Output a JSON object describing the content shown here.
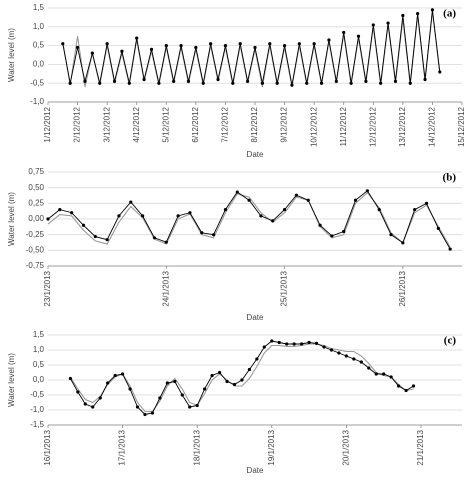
{
  "chart_data": [
    {
      "type": "line",
      "label": "(a)",
      "xlabel": "Date",
      "ylabel": "Water level (m)",
      "grid": true,
      "xlim": [
        1,
        15
      ],
      "xticks": [
        {
          "value": 1,
          "label": "1/12/2012"
        },
        {
          "value": 2,
          "label": "2/12/2012"
        },
        {
          "value": 3,
          "label": "3/12/2012"
        },
        {
          "value": 4,
          "label": "4/12/2012"
        },
        {
          "value": 5,
          "label": "5/12/2012"
        },
        {
          "value": 6,
          "label": "6/12/2012"
        },
        {
          "value": 7,
          "label": "7/12/2012"
        },
        {
          "value": 8,
          "label": "8/12/2012"
        },
        {
          "value": 9,
          "label": "9/12/2012"
        },
        {
          "value": 10,
          "label": "10/12/2012"
        },
        {
          "value": 11,
          "label": "11/12/2012"
        },
        {
          "value": 12,
          "label": "12/12/2012"
        },
        {
          "value": 13,
          "label": "13/12/2012"
        },
        {
          "value": 14,
          "label": "14/12/2012"
        },
        {
          "value": 15,
          "label": "15/12/2012"
        }
      ],
      "ylim": [
        -1,
        1.5
      ],
      "yticks": [
        {
          "value": -1,
          "label": "-1,0"
        },
        {
          "value": -0.5,
          "label": "-0,5"
        },
        {
          "value": 0,
          "label": "0,0"
        },
        {
          "value": 0.5,
          "label": "0,5"
        },
        {
          "value": 1,
          "label": "1,0"
        },
        {
          "value": 1.5,
          "label": "1,5"
        }
      ],
      "x": [
        1.5,
        1.75,
        2,
        2.25,
        2.5,
        2.75,
        3,
        3.25,
        3.5,
        3.75,
        4,
        4.25,
        4.5,
        4.75,
        5,
        5.25,
        5.5,
        5.75,
        6,
        6.25,
        6.5,
        6.75,
        7,
        7.25,
        7.5,
        7.75,
        8,
        8.25,
        8.5,
        8.75,
        9,
        9.25,
        9.5,
        9.75,
        10,
        10.25,
        10.5,
        10.75,
        11,
        11.25,
        11.5,
        11.75,
        12,
        12.25,
        12.5,
        12.75,
        13,
        13.25,
        13.5,
        13.75,
        14,
        14.25
      ],
      "series": [
        {
          "color": "#999999",
          "marker": false,
          "values": [
            0.6,
            -0.55,
            0.75,
            -0.6,
            0.3,
            -0.55,
            0.5,
            -0.5,
            0.3,
            -0.55,
            0.65,
            -0.45,
            0.35,
            -0.55,
            0.45,
            -0.5,
            0.45,
            -0.5,
            0.4,
            -0.55,
            0.5,
            -0.45,
            0.45,
            -0.55,
            0.5,
            -0.5,
            0.4,
            -0.6,
            0.5,
            -0.55,
            0.45,
            -0.6,
            0.5,
            -0.55,
            0.5,
            -0.55,
            0.6,
            -0.5,
            0.8,
            -0.55,
            0.7,
            -0.5,
            1.0,
            -0.55,
            1.05,
            -0.5,
            1.2,
            -0.55,
            1.3,
            -0.45,
            1.4,
            -0.25
          ]
        },
        {
          "color": "#000000",
          "marker": true,
          "values": [
            0.55,
            -0.5,
            0.45,
            -0.45,
            0.3,
            -0.5,
            0.55,
            -0.45,
            0.35,
            -0.5,
            0.7,
            -0.4,
            0.4,
            -0.5,
            0.5,
            -0.45,
            0.5,
            -0.45,
            0.45,
            -0.5,
            0.55,
            -0.4,
            0.5,
            -0.5,
            0.55,
            -0.45,
            0.45,
            -0.5,
            0.55,
            -0.5,
            0.5,
            -0.55,
            0.55,
            -0.5,
            0.55,
            -0.5,
            0.65,
            -0.45,
            0.85,
            -0.5,
            0.75,
            -0.45,
            1.05,
            -0.5,
            1.1,
            -0.45,
            1.3,
            -0.5,
            1.35,
            -0.4,
            1.45,
            -0.2
          ]
        }
      ]
    },
    {
      "type": "line",
      "label": "(b)",
      "xlabel": "Date",
      "ylabel": "Water level (m)",
      "grid": true,
      "xlim": [
        23,
        26.5
      ],
      "xticks": [
        {
          "value": 23,
          "label": "23/1/2013"
        },
        {
          "value": 24,
          "label": "24/1/2013"
        },
        {
          "value": 25,
          "label": "25/1/2013"
        },
        {
          "value": 26,
          "label": "26/1/2013"
        }
      ],
      "ylim": [
        -0.75,
        0.75
      ],
      "yticks": [
        {
          "value": -0.75,
          "label": "-0,75"
        },
        {
          "value": -0.5,
          "label": "-0,50"
        },
        {
          "value": -0.25,
          "label": "-0,25"
        },
        {
          "value": 0,
          "label": "0,00"
        },
        {
          "value": 0.25,
          "label": "0,25"
        },
        {
          "value": 0.5,
          "label": "0,50"
        },
        {
          "value": 0.75,
          "label": "0,75"
        }
      ],
      "x": [
        23,
        23.1,
        23.2,
        23.3,
        23.4,
        23.5,
        23.6,
        23.7,
        23.8,
        23.9,
        24,
        24.1,
        24.2,
        24.3,
        24.4,
        24.5,
        24.6,
        24.7,
        24.8,
        24.9,
        25,
        25.1,
        25.2,
        25.3,
        25.4,
        25.5,
        25.6,
        25.7,
        25.8,
        25.9,
        26,
        26.1,
        26.2,
        26.3,
        26.4
      ],
      "series": [
        {
          "color": "#999999",
          "marker": false,
          "values": [
            -0.08,
            0.07,
            0.05,
            -0.18,
            -0.35,
            -0.4,
            -0.05,
            0.2,
            0.02,
            -0.32,
            -0.4,
            0.0,
            0.08,
            -0.25,
            -0.3,
            0.1,
            0.4,
            0.35,
            0.1,
            -0.05,
            0.1,
            0.35,
            0.3,
            -0.12,
            -0.3,
            -0.25,
            0.25,
            0.42,
            0.18,
            -0.22,
            -0.38,
            0.1,
            0.22,
            -0.12,
            -0.45
          ]
        },
        {
          "color": "#000000",
          "marker": true,
          "values": [
            0.0,
            0.15,
            0.1,
            -0.1,
            -0.28,
            -0.33,
            0.05,
            0.27,
            0.05,
            -0.3,
            -0.37,
            0.05,
            0.1,
            -0.22,
            -0.25,
            0.15,
            0.43,
            0.3,
            0.05,
            -0.03,
            0.15,
            0.38,
            0.3,
            -0.1,
            -0.27,
            -0.2,
            0.3,
            0.45,
            0.15,
            -0.25,
            -0.38,
            0.15,
            0.25,
            -0.15,
            -0.48
          ]
        }
      ]
    },
    {
      "type": "line",
      "label": "(c)",
      "xlabel": "Date",
      "ylabel": "Water level (m)",
      "grid": true,
      "xlim": [
        16,
        21.55
      ],
      "xticks": [
        {
          "value": 16,
          "label": "16/1/2013"
        },
        {
          "value": 17,
          "label": "17/1/2013"
        },
        {
          "value": 18,
          "label": "18/1/2013"
        },
        {
          "value": 19,
          "label": "19/1/2013"
        },
        {
          "value": 20,
          "label": "20/1/2013"
        },
        {
          "value": 21,
          "label": "21/1/2013"
        }
      ],
      "ylim": [
        -1.5,
        1.5
      ],
      "yticks": [
        {
          "value": -1.5,
          "label": "-1,5"
        },
        {
          "value": -1,
          "label": "-1,0"
        },
        {
          "value": -0.5,
          "label": "-0,5"
        },
        {
          "value": 0,
          "label": "0,0"
        },
        {
          "value": 0.5,
          "label": "0,5"
        },
        {
          "value": 1,
          "label": "1,0"
        },
        {
          "value": 1.5,
          "label": "1,5"
        }
      ],
      "x": [
        16.3,
        16.4,
        16.5,
        16.6,
        16.7,
        16.8,
        16.9,
        17,
        17.1,
        17.2,
        17.3,
        17.4,
        17.5,
        17.6,
        17.7,
        17.8,
        17.9,
        18,
        18.1,
        18.2,
        18.3,
        18.4,
        18.5,
        18.6,
        18.7,
        18.8,
        18.9,
        19,
        19.1,
        19.2,
        19.3,
        19.4,
        19.5,
        19.6,
        19.7,
        19.8,
        19.9,
        20,
        20.1,
        20.2,
        20.3,
        20.4,
        20.5,
        20.6,
        20.7,
        20.8,
        20.9
      ],
      "series": [
        {
          "color": "#999999",
          "marker": false,
          "values": [
            0.1,
            -0.3,
            -0.65,
            -0.75,
            -0.55,
            -0.15,
            0.1,
            0.2,
            -0.2,
            -0.75,
            -1.05,
            -1.05,
            -0.7,
            -0.2,
            0.05,
            -0.3,
            -0.75,
            -0.85,
            -0.45,
            0.0,
            0.2,
            0.0,
            -0.2,
            -0.2,
            0.05,
            0.45,
            0.9,
            1.15,
            1.15,
            1.12,
            1.12,
            1.15,
            1.2,
            1.2,
            1.15,
            1.05,
            1.0,
            0.95,
            0.95,
            0.8,
            0.55,
            0.25,
            0.15,
            0.1,
            -0.15,
            -0.35,
            -0.3
          ]
        },
        {
          "color": "#000000",
          "marker": true,
          "values": [
            0.05,
            -0.4,
            -0.8,
            -0.9,
            -0.6,
            -0.1,
            0.15,
            0.2,
            -0.3,
            -0.9,
            -1.15,
            -1.1,
            -0.6,
            -0.1,
            -0.05,
            -0.5,
            -0.9,
            -0.85,
            -0.3,
            0.15,
            0.25,
            -0.05,
            -0.15,
            0.0,
            0.35,
            0.7,
            1.1,
            1.3,
            1.25,
            1.2,
            1.2,
            1.2,
            1.25,
            1.22,
            1.1,
            1.0,
            0.9,
            0.8,
            0.7,
            0.6,
            0.4,
            0.2,
            0.2,
            0.1,
            -0.2,
            -0.35,
            -0.2
          ]
        }
      ]
    }
  ]
}
